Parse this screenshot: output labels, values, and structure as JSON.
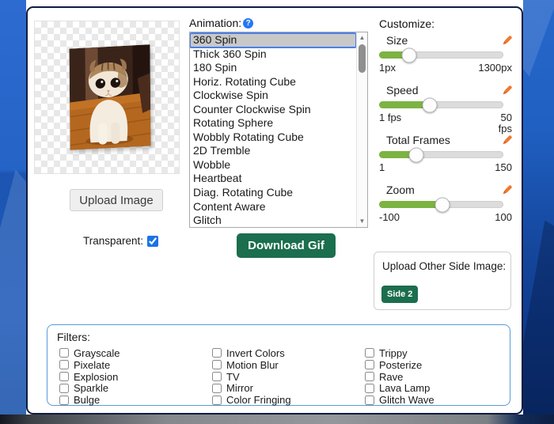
{
  "preview": {
    "transparent_label": "Transparent:",
    "transparent_checked": true,
    "image_subject": "cat photo mid-spin on transparent checkerboard"
  },
  "buttons": {
    "upload_image": "Upload Image",
    "download_gif": "Download Gif"
  },
  "animation": {
    "label": "Animation:",
    "selected": "360 Spin",
    "items": [
      "360 Spin",
      "Thick 360 Spin",
      "180 Spin",
      "Horiz. Rotating Cube",
      "Clockwise Spin",
      "Counter Clockwise Spin",
      "Rotating Sphere",
      "Wobbly Rotating Cube",
      "2D Tremble",
      "Wobble",
      "Heartbeat",
      "Diag. Rotating Cube",
      "Content Aware",
      "Glitch"
    ]
  },
  "customize": {
    "title": "Customize:",
    "sliders": [
      {
        "name": "Size",
        "min": "1px",
        "max": "1300px",
        "percent": 24
      },
      {
        "name": "Speed",
        "min": "1 fps",
        "max": "50\nfps",
        "percent": 41
      },
      {
        "name": "Total Frames",
        "min": "1",
        "max": "150",
        "percent": 30
      },
      {
        "name": "Zoom",
        "min": "-100",
        "max": "100",
        "percent": 51
      }
    ]
  },
  "side_upload": {
    "title": "Upload Other Side Image:",
    "button": "Side 2"
  },
  "filters": {
    "title": "Filters:",
    "columns": [
      [
        "Grayscale",
        "Pixelate",
        "Explosion",
        "Sparkle",
        "Bulge"
      ],
      [
        "Invert Colors",
        "Motion Blur",
        "TV",
        "Mirror",
        "Color Fringing"
      ],
      [
        "Trippy",
        "Posterize",
        "Rave",
        "Lava Lamp",
        "Glitch Wave"
      ]
    ]
  },
  "icons": {
    "help": "?",
    "scroll_up": "▲",
    "scroll_down": "▼"
  },
  "colors": {
    "slider_green": "#7cb342",
    "button_green": "#1b6e4e",
    "selection_blue": "#4a7fe8",
    "filter_border_blue": "#5b9bd5",
    "pencil_orange": "#f1782f",
    "help_blue": "#2479f2",
    "checkbox_blue": "#1a73e8",
    "background_blue": "#1e5ec7"
  }
}
